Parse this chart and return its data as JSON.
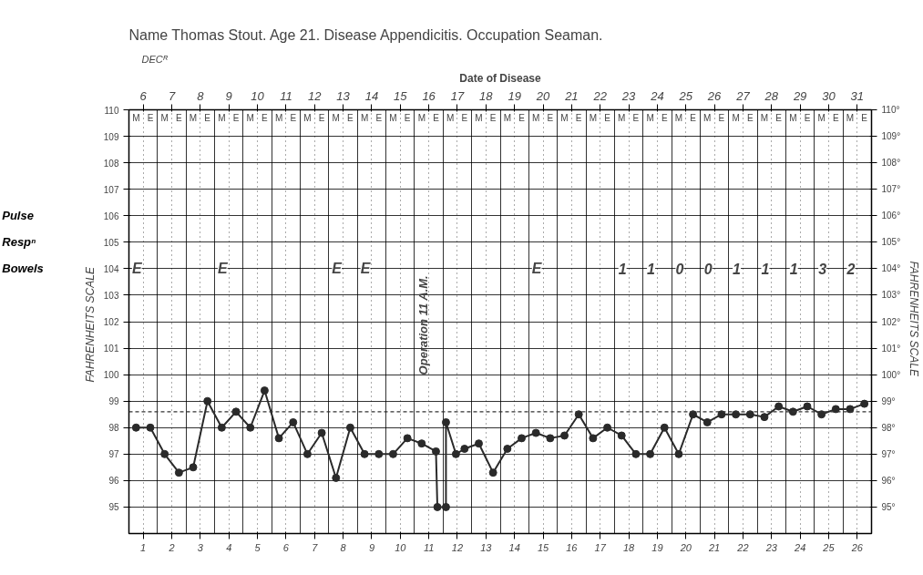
{
  "chart_data": {
    "type": "line",
    "title": "Name Thomas Stout.      Age 21.      Disease Appendicitis.      Occupation Seaman.",
    "x2label": "Date of Disease",
    "ylabel": "FAHRENHEITS   SCALE",
    "y2label": "FAHRENHEITS   SCALE",
    "x": [
      0.75,
      1.25,
      1.75,
      2.25,
      2.75,
      3.25,
      3.75,
      4.25,
      4.75,
      5.25,
      5.75,
      6.25,
      6.75,
      7.25,
      7.75,
      8.25,
      8.75,
      9.25,
      9.75,
      10.25,
      10.75,
      11.25,
      11.3,
      11.6,
      11.6,
      11.95,
      12.25,
      12.75,
      13.25,
      13.75,
      14.25,
      14.75,
      15.25,
      15.75,
      16.25,
      16.75,
      17.25,
      17.75,
      18.25,
      18.75,
      19.25,
      19.75,
      20.25,
      20.75,
      21.25,
      21.75,
      22.25,
      22.75,
      23.25,
      23.75,
      24.25,
      24.75,
      25.25,
      25.75,
      26.25
    ],
    "series": [
      {
        "color": "#2a2a2a",
        "values": [
          98.0,
          98.0,
          97.0,
          96.3,
          96.5,
          99.0,
          98.0,
          98.6,
          98.0,
          99.4,
          97.6,
          98.2,
          97.0,
          97.8,
          96.1,
          98.0,
          97.0,
          97.0,
          97.0,
          97.6,
          97.4,
          97.1,
          95.0,
          95.0,
          98.2,
          97.0,
          97.2,
          97.4,
          96.3,
          97.2,
          97.6,
          97.8,
          97.6,
          97.7,
          98.5,
          97.6,
          98.0,
          97.7,
          97.0,
          97.0,
          98.0,
          97.0,
          98.5,
          98.2,
          98.5,
          98.5,
          98.5,
          98.4,
          98.8,
          98.6,
          98.8,
          98.5,
          98.7,
          98.7,
          98.9
        ]
      }
    ],
    "marker": "circle",
    "line_style": "solid",
    "grid": true,
    "xlim": [
      0.5,
      26.5
    ],
    "xticks": [
      1,
      2,
      3,
      4,
      5,
      6,
      7,
      8,
      9,
      10,
      11,
      12,
      13,
      14,
      15,
      16,
      17,
      18,
      19,
      20,
      21,
      22,
      23,
      24,
      25,
      26
    ],
    "x2lim": [
      5.5,
      31.5
    ],
    "x2ticks": [
      6,
      7,
      8,
      9,
      10,
      11,
      12,
      13,
      14,
      15,
      16,
      17,
      18,
      19,
      20,
      21,
      22,
      23,
      24,
      25,
      26,
      27,
      28,
      29,
      30,
      31
    ],
    "ylim": [
      94,
      110
    ],
    "yticks": [
      95,
      96,
      97,
      98,
      99,
      100,
      101,
      102,
      103,
      104,
      105,
      106,
      107,
      108,
      109,
      110
    ],
    "y2lim": [
      94,
      110
    ],
    "y2ticks": [
      {
        "value": 95,
        "label": "95°"
      },
      {
        "value": 96,
        "label": "96°"
      },
      {
        "value": 97,
        "label": "97°"
      },
      {
        "value": 98,
        "label": "98°"
      },
      {
        "value": 99,
        "label": "99°"
      },
      {
        "value": 100,
        "label": "100°"
      },
      {
        "value": 101,
        "label": "101°"
      },
      {
        "value": 102,
        "label": "102°"
      },
      {
        "value": 103,
        "label": "103°"
      },
      {
        "value": 104,
        "label": "104°"
      },
      {
        "value": 105,
        "label": "105°"
      },
      {
        "value": 106,
        "label": "106°"
      },
      {
        "value": 107,
        "label": "107°"
      },
      {
        "value": 108,
        "label": "108°"
      },
      {
        "value": 109,
        "label": "109°"
      },
      {
        "value": 110,
        "label": "110°"
      }
    ],
    "ref_lines": [
      {
        "axis": "y",
        "value": 98.6,
        "line_style": "dashed",
        "color": "#333333"
      }
    ],
    "annotations": [
      "DECᴿ",
      "Pulse",
      "Respⁿ",
      "Bowels",
      "E",
      "E",
      "E",
      "E",
      "E",
      "1",
      "1",
      "0",
      "0",
      "1",
      "1",
      "1",
      "3",
      "2",
      "Operation   11 A.M.",
      "M",
      "E",
      "M",
      "E",
      "M",
      "E",
      "M",
      "E",
      "M",
      "E",
      "M",
      "E",
      "M",
      "E",
      "M",
      "E",
      "M",
      "E",
      "M",
      "E",
      "M",
      "E",
      "M",
      "E",
      "M",
      "E",
      "M",
      "E",
      "M",
      "E",
      "M",
      "E",
      "M",
      "E",
      "M",
      "E",
      "M",
      "E",
      "M",
      "E",
      "M",
      "E",
      "M",
      "E",
      "M",
      "E",
      "M",
      "E",
      "M",
      "E",
      "M",
      "E"
    ]
  }
}
